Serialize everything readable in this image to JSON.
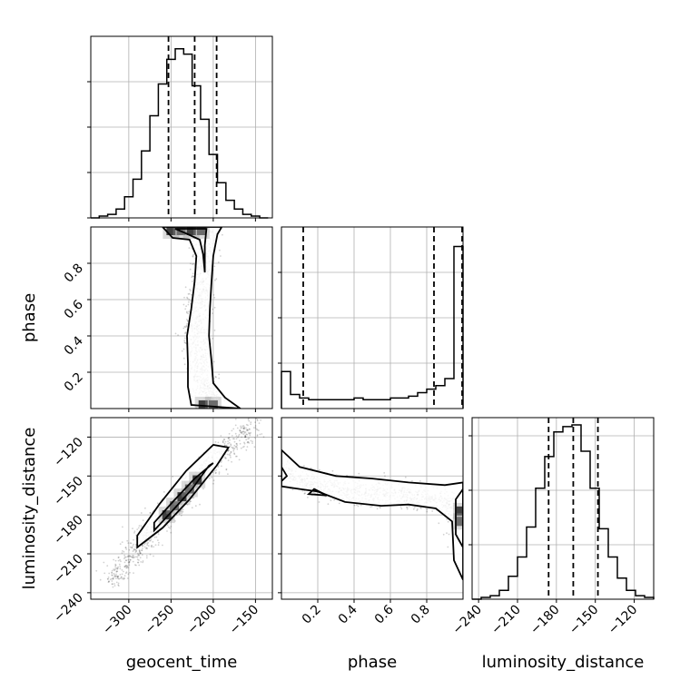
{
  "chart_data": {
    "type": "corner",
    "parameters": [
      "geocent_time",
      "phase",
      "luminosity_distance"
    ],
    "grid": true,
    "panels": [
      {
        "id": "hist-geocent_time",
        "type": "histogram",
        "xlabel": "",
        "xlim": [
          -345,
          -130
        ],
        "xticks": [
          -300,
          -250,
          -200,
          -150
        ],
        "xtick_labels": [],
        "yticks": [
          0,
          0.25,
          0.5,
          0.75
        ],
        "yticks_labeled": false,
        "bin_edges": [
          -345,
          -335,
          -325,
          -315,
          -305,
          -295,
          -285,
          -275,
          -265,
          -255,
          -245,
          -235,
          -225,
          -215,
          -205,
          -195,
          -185,
          -175,
          -165,
          -155,
          -145,
          -135
        ],
        "counts": [
          0,
          0.01,
          0.02,
          0.05,
          0.12,
          0.22,
          0.38,
          0.58,
          0.76,
          0.9,
          0.96,
          0.93,
          0.75,
          0.56,
          0.36,
          0.2,
          0.1,
          0.05,
          0.02,
          0.01,
          0
        ],
        "quantiles": [
          -253,
          -222,
          -196
        ]
      },
      {
        "id": "hist-phase",
        "type": "histogram",
        "xlabel": "",
        "xlim": [
          0,
          1
        ],
        "xticks": [
          0.2,
          0.4,
          0.6,
          0.8
        ],
        "xtick_labels": [],
        "yticks": [
          0.25,
          0.5,
          0.75
        ],
        "yticks_labeled": false,
        "bin_edges": [
          0,
          0.05,
          0.1,
          0.15,
          0.2,
          0.25,
          0.3,
          0.35,
          0.4,
          0.45,
          0.5,
          0.55,
          0.6,
          0.65,
          0.7,
          0.75,
          0.8,
          0.85,
          0.9,
          0.95,
          1.0
        ],
        "counts": [
          0.21,
          0.08,
          0.06,
          0.05,
          0.05,
          0.05,
          0.05,
          0.05,
          0.06,
          0.05,
          0.05,
          0.05,
          0.06,
          0.06,
          0.07,
          0.09,
          0.11,
          0.13,
          0.17,
          0.92
        ],
        "quantiles": [
          0.12,
          0.84,
          0.995
        ]
      },
      {
        "id": "hist-luminosity_distance",
        "type": "histogram",
        "xlabel": "luminosity_distance",
        "xlim": [
          -245,
          -105
        ],
        "xticks": [
          -240,
          -210,
          -180,
          -150,
          -120
        ],
        "xtick_labels": [
          "−240",
          "−210",
          "−180",
          "−150",
          "−120"
        ],
        "yticks": [
          0.3,
          0.6,
          0.9
        ],
        "yticks_labeled": false,
        "bin_edges": [
          -245,
          -238,
          -231,
          -224,
          -217,
          -210,
          -203,
          -196,
          -189,
          -182,
          -175,
          -168,
          -161,
          -154,
          -147,
          -140,
          -133,
          -126,
          -119,
          -112,
          -105
        ],
        "counts": [
          0,
          0.01,
          0.02,
          0.05,
          0.13,
          0.24,
          0.41,
          0.63,
          0.81,
          0.95,
          0.98,
          0.99,
          0.84,
          0.63,
          0.4,
          0.24,
          0.12,
          0.05,
          0.02,
          0.01
        ],
        "quantiles": [
          -186,
          -167,
          -148
        ]
      },
      {
        "id": "scatter-geocent_time-phase",
        "type": "density",
        "xlabel": "",
        "ylabel": "phase",
        "xlim": [
          -345,
          -130
        ],
        "ylim": [
          0,
          1
        ],
        "xticks": [
          -300,
          -250,
          -200,
          -150
        ],
        "yticks": [
          0.2,
          0.4,
          0.6,
          0.8
        ],
        "ytick_labels": [
          "0.2",
          "0.4",
          "0.6",
          "0.8"
        ],
        "ridge": [
          [
            -205,
            0.98
          ],
          [
            -210,
            0.9
          ],
          [
            -212,
            0.8
          ],
          [
            -214,
            0.7
          ],
          [
            -216,
            0.6
          ],
          [
            -219,
            0.5
          ],
          [
            -220,
            0.4
          ],
          [
            -218,
            0.3
          ],
          [
            -214,
            0.2
          ],
          [
            -210,
            0.1
          ],
          [
            -200,
            0.03
          ]
        ],
        "outer_contour": [
          [
            -260,
            1.0
          ],
          [
            -248,
            0.94
          ],
          [
            -228,
            0.93
          ],
          [
            -220,
            0.84
          ],
          [
            -222,
            0.7
          ],
          [
            -226,
            0.55
          ],
          [
            -231,
            0.4
          ],
          [
            -230,
            0.25
          ],
          [
            -230,
            0.12
          ],
          [
            -226,
            0.02
          ],
          [
            -168,
            0.0
          ],
          [
            -186,
            0.06
          ],
          [
            -200,
            0.14
          ],
          [
            -202,
            0.26
          ],
          [
            -205,
            0.4
          ],
          [
            -204,
            0.55
          ],
          [
            -202,
            0.7
          ],
          [
            -200,
            0.84
          ],
          [
            -195,
            0.96
          ],
          [
            -190,
            1.0
          ]
        ],
        "inner_contour": [
          [
            -245,
            0.99
          ],
          [
            -230,
            0.96
          ],
          [
            -216,
            0.93
          ],
          [
            -212,
            0.85
          ],
          [
            -210,
            0.75
          ],
          [
            -210,
            0.9
          ],
          [
            -208,
            0.99
          ]
        ],
        "core": [
          [
            -250,
            0.98
          ],
          [
            -238,
            0.98
          ],
          [
            -226,
            0.98
          ],
          [
            -214,
            0.98
          ],
          [
            -212,
            0.02
          ],
          [
            -200,
            0.02
          ]
        ]
      },
      {
        "id": "scatter-geocent_time-luminosity_distance",
        "type": "density",
        "xlabel": "geocent_time",
        "ylabel": "luminosity_distance",
        "xlim": [
          -345,
          -130
        ],
        "ylim": [
          -245,
          -105
        ],
        "xticks": [
          -300,
          -250,
          -200,
          -150
        ],
        "xtick_labels": [
          "−300",
          "−250",
          "−200",
          "−150"
        ],
        "yticks": [
          -240,
          -210,
          -180,
          -150,
          -120
        ],
        "ytick_labels": [
          "−240",
          "−210",
          "−180",
          "−150",
          "−120"
        ],
        "ridge": [
          [
            -320,
            -232
          ],
          [
            -300,
            -214
          ],
          [
            -280,
            -198
          ],
          [
            -260,
            -183
          ],
          [
            -240,
            -168
          ],
          [
            -222,
            -154
          ],
          [
            -200,
            -140
          ],
          [
            -180,
            -126
          ],
          [
            -150,
            -110
          ]
        ],
        "outer_contour": [
          [
            -290,
            -205
          ],
          [
            -260,
            -190
          ],
          [
            -228,
            -168
          ],
          [
            -196,
            -142
          ],
          [
            -182,
            -128
          ],
          [
            -200,
            -126
          ],
          [
            -232,
            -146
          ],
          [
            -264,
            -172
          ],
          [
            -290,
            -196
          ]
        ],
        "inner_contour": [
          [
            -270,
            -192
          ],
          [
            -250,
            -178
          ],
          [
            -225,
            -160
          ],
          [
            -205,
            -142
          ],
          [
            -200,
            -140
          ],
          [
            -222,
            -152
          ],
          [
            -248,
            -170
          ],
          [
            -270,
            -186
          ]
        ],
        "core": [
          [
            -255,
            -180
          ],
          [
            -246,
            -173
          ],
          [
            -237,
            -166
          ],
          [
            -228,
            -160
          ],
          [
            -219,
            -153
          ]
        ]
      },
      {
        "id": "scatter-phase-luminosity_distance",
        "type": "density",
        "xlabel": "phase",
        "ylabel": "",
        "xlim": [
          0,
          1
        ],
        "ylim": [
          -245,
          -105
        ],
        "xticks": [
          0.2,
          0.4,
          0.6,
          0.8
        ],
        "xtick_labels": [
          "0.2",
          "0.4",
          "0.6",
          "0.8"
        ],
        "yticks": [
          -240,
          -210,
          -180,
          -150,
          -120
        ],
        "ridge": [
          [
            0.0,
            -145
          ],
          [
            0.1,
            -153
          ],
          [
            0.2,
            -157
          ],
          [
            0.3,
            -160
          ],
          [
            0.4,
            -162
          ],
          [
            0.5,
            -163
          ],
          [
            0.6,
            -164
          ],
          [
            0.7,
            -165
          ],
          [
            0.8,
            -167
          ],
          [
            0.9,
            -170
          ],
          [
            0.97,
            -180
          ],
          [
            1.0,
            -200
          ]
        ],
        "outer_contour": [
          [
            0.0,
            -130
          ],
          [
            0.1,
            -143
          ],
          [
            0.3,
            -150
          ],
          [
            0.5,
            -152
          ],
          [
            0.7,
            -155
          ],
          [
            0.9,
            -157
          ],
          [
            1.0,
            -155
          ],
          [
            1.0,
            -230
          ],
          [
            0.95,
            -215
          ],
          [
            0.94,
            -185
          ],
          [
            0.85,
            -175
          ],
          [
            0.7,
            -172
          ],
          [
            0.55,
            -173
          ],
          [
            0.35,
            -170
          ],
          [
            0.2,
            -162
          ],
          [
            0.1,
            -160
          ],
          [
            0.0,
            -158
          ]
        ],
        "inner_contour": [
          [
            0.0,
            -143
          ],
          [
            0.03,
            -150
          ],
          [
            0.0,
            -154
          ]
        ],
        "inner_contour_right": [
          [
            1.0,
            -160
          ],
          [
            0.96,
            -168
          ],
          [
            0.96,
            -195
          ],
          [
            1.0,
            -205
          ]
        ],
        "inner_contour_mid": [
          [
            0.18,
            -160
          ],
          [
            0.25,
            -165
          ],
          [
            0.15,
            -164
          ]
        ],
        "core": [
          [
            0.99,
            -177
          ],
          [
            0.99,
            -185
          ]
        ]
      }
    ]
  }
}
